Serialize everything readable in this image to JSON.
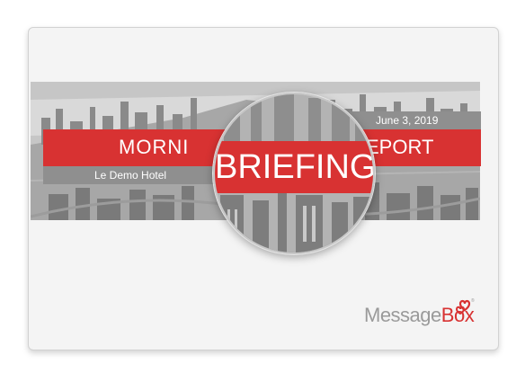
{
  "report": {
    "title_left": "MORNI",
    "title_right": "EPORT",
    "magnified_word": "BRIEFING",
    "date": "June 3, 2019",
    "hotel": "Le Demo Hotel"
  },
  "brand": {
    "name_part1": "Message",
    "name_part2": "Box",
    "trademark": "®"
  },
  "colors": {
    "accent_red": "#d83232",
    "band_gray": "#8f8f8f",
    "logo_gray": "#9a9a9a"
  },
  "icons": {
    "banner_background": "city-skyline-photo",
    "magnifier": "magnifying-lens",
    "logo_mark": "heart-logo-icon"
  }
}
